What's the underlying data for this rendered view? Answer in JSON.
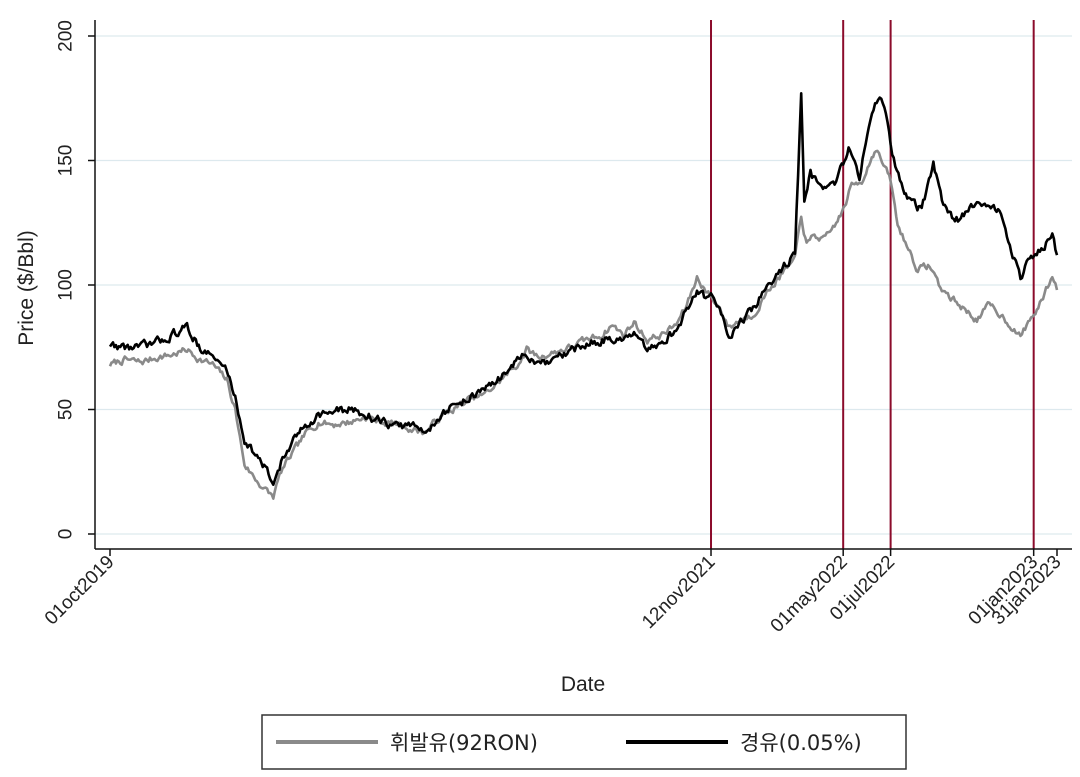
{
  "chart_data": {
    "type": "line",
    "xlabel": "Date",
    "ylabel": "Price ($/Bbl)",
    "ylim": [
      0,
      200
    ],
    "yticks": [
      0,
      50,
      100,
      150,
      200
    ],
    "xlim": [
      "2019-10-01",
      "2023-01-31"
    ],
    "grid": "horizontal",
    "legend_position": "bottom",
    "colors": {
      "gasoline": "#8a8a8a",
      "diesel": "#000000",
      "vline": "#8b0b2b",
      "grid": "#dde9ee"
    },
    "vertical_lines": [
      "2021-11-12",
      "2022-05-01",
      "2022-07-01",
      "2023-01-01"
    ],
    "x_ticks": [
      {
        "date": "2019-10-01",
        "label": "01oct2019"
      },
      {
        "date": "2021-11-12",
        "label": "12nov2021"
      },
      {
        "date": "2022-05-01",
        "label": "01may2022"
      },
      {
        "date": "2022-07-01",
        "label": "01jul2022"
      },
      {
        "date": "2023-01-01",
        "label": "01jan2023"
      },
      {
        "date": "2023-01-31",
        "label": "31jan2023"
      }
    ],
    "series": [
      {
        "name": "휘발유(92RON)",
        "key": "gasoline",
        "points": [
          [
            "2019-10-01",
            68
          ],
          [
            "2019-10-20",
            70
          ],
          [
            "2019-11-10",
            69
          ],
          [
            "2019-12-01",
            71
          ],
          [
            "2019-12-20",
            72
          ],
          [
            "2020-01-08",
            74
          ],
          [
            "2020-01-25",
            70
          ],
          [
            "2020-02-10",
            68
          ],
          [
            "2020-02-28",
            62
          ],
          [
            "2020-03-10",
            50
          ],
          [
            "2020-03-22",
            28
          ],
          [
            "2020-04-05",
            22
          ],
          [
            "2020-04-20",
            17
          ],
          [
            "2020-04-28",
            15
          ],
          [
            "2020-05-08",
            25
          ],
          [
            "2020-05-22",
            32
          ],
          [
            "2020-06-08",
            40
          ],
          [
            "2020-06-25",
            45
          ],
          [
            "2020-07-15",
            44
          ],
          [
            "2020-08-05",
            45
          ],
          [
            "2020-08-25",
            47
          ],
          [
            "2020-09-15",
            45
          ],
          [
            "2020-10-05",
            44
          ],
          [
            "2020-10-25",
            42
          ],
          [
            "2020-11-10",
            41
          ],
          [
            "2020-11-25",
            46
          ],
          [
            "2020-12-15",
            50
          ],
          [
            "2021-01-05",
            54
          ],
          [
            "2021-01-25",
            56
          ],
          [
            "2021-02-15",
            62
          ],
          [
            "2021-03-08",
            68
          ],
          [
            "2021-03-20",
            74
          ],
          [
            "2021-04-05",
            71
          ],
          [
            "2021-04-25",
            73
          ],
          [
            "2021-05-15",
            75
          ],
          [
            "2021-06-05",
            78
          ],
          [
            "2021-06-25",
            80
          ],
          [
            "2021-07-08",
            84
          ],
          [
            "2021-07-22",
            80
          ],
          [
            "2021-08-05",
            85
          ],
          [
            "2021-08-22",
            78
          ],
          [
            "2021-09-10",
            80
          ],
          [
            "2021-09-28",
            84
          ],
          [
            "2021-10-12",
            92
          ],
          [
            "2021-10-25",
            103
          ],
          [
            "2021-11-05",
            98
          ],
          [
            "2021-11-12",
            95
          ],
          [
            "2021-11-25",
            90
          ],
          [
            "2021-12-05",
            83
          ],
          [
            "2021-12-20",
            86
          ],
          [
            "2022-01-05",
            88
          ],
          [
            "2022-01-25",
            98
          ],
          [
            "2022-02-10",
            104
          ],
          [
            "2022-02-28",
            110
          ],
          [
            "2022-03-08",
            128
          ],
          [
            "2022-03-15",
            116
          ],
          [
            "2022-03-25",
            120
          ],
          [
            "2022-04-08",
            118
          ],
          [
            "2022-04-22",
            125
          ],
          [
            "2022-05-01",
            130
          ],
          [
            "2022-05-12",
            140
          ],
          [
            "2022-05-25",
            142
          ],
          [
            "2022-06-05",
            150
          ],
          [
            "2022-06-12",
            155
          ],
          [
            "2022-06-22",
            148
          ],
          [
            "2022-07-01",
            142
          ],
          [
            "2022-07-10",
            124
          ],
          [
            "2022-07-22",
            116
          ],
          [
            "2022-08-05",
            106
          ],
          [
            "2022-08-20",
            108
          ],
          [
            "2022-09-05",
            98
          ],
          [
            "2022-09-20",
            94
          ],
          [
            "2022-10-05",
            90
          ],
          [
            "2022-10-20",
            86
          ],
          [
            "2022-11-05",
            92
          ],
          [
            "2022-11-20",
            88
          ],
          [
            "2022-12-05",
            83
          ],
          [
            "2022-12-15",
            79
          ],
          [
            "2022-12-25",
            85
          ],
          [
            "2023-01-05",
            90
          ],
          [
            "2023-01-15",
            96
          ],
          [
            "2023-01-25",
            104
          ],
          [
            "2023-01-31",
            98
          ]
        ]
      },
      {
        "name": "경유(0.05%)",
        "key": "diesel",
        "points": [
          [
            "2019-10-01",
            76
          ],
          [
            "2019-10-20",
            75
          ],
          [
            "2019-11-10",
            75
          ],
          [
            "2019-12-01",
            77
          ],
          [
            "2019-12-20",
            80
          ],
          [
            "2020-01-08",
            83
          ],
          [
            "2020-01-25",
            75
          ],
          [
            "2020-02-10",
            71
          ],
          [
            "2020-02-28",
            66
          ],
          [
            "2020-03-10",
            55
          ],
          [
            "2020-03-22",
            38
          ],
          [
            "2020-04-05",
            32
          ],
          [
            "2020-04-20",
            25
          ],
          [
            "2020-04-28",
            20
          ],
          [
            "2020-05-08",
            29
          ],
          [
            "2020-05-22",
            36
          ],
          [
            "2020-06-08",
            44
          ],
          [
            "2020-06-25",
            48
          ],
          [
            "2020-07-15",
            49
          ],
          [
            "2020-08-05",
            50
          ],
          [
            "2020-08-25",
            48
          ],
          [
            "2020-09-15",
            45
          ],
          [
            "2020-10-05",
            43
          ],
          [
            "2020-10-25",
            44
          ],
          [
            "2020-11-10",
            40
          ],
          [
            "2020-11-25",
            47
          ],
          [
            "2020-12-15",
            51
          ],
          [
            "2021-01-05",
            55
          ],
          [
            "2021-01-25",
            58
          ],
          [
            "2021-02-15",
            63
          ],
          [
            "2021-03-08",
            70
          ],
          [
            "2021-03-20",
            72
          ],
          [
            "2021-04-05",
            67
          ],
          [
            "2021-04-25",
            70
          ],
          [
            "2021-05-15",
            73
          ],
          [
            "2021-06-05",
            76
          ],
          [
            "2021-06-25",
            78
          ],
          [
            "2021-07-08",
            79
          ],
          [
            "2021-07-22",
            77
          ],
          [
            "2021-08-05",
            80
          ],
          [
            "2021-08-22",
            73
          ],
          [
            "2021-09-10",
            77
          ],
          [
            "2021-09-28",
            82
          ],
          [
            "2021-10-12",
            90
          ],
          [
            "2021-10-25",
            98
          ],
          [
            "2021-11-05",
            95
          ],
          [
            "2021-11-12",
            96
          ],
          [
            "2021-11-25",
            88
          ],
          [
            "2021-12-05",
            80
          ],
          [
            "2021-12-20",
            85
          ],
          [
            "2022-01-05",
            90
          ],
          [
            "2022-01-25",
            100
          ],
          [
            "2022-02-10",
            106
          ],
          [
            "2022-02-28",
            113
          ],
          [
            "2022-03-08",
            176
          ],
          [
            "2022-03-12",
            132
          ],
          [
            "2022-03-20",
            145
          ],
          [
            "2022-04-05",
            136
          ],
          [
            "2022-04-20",
            140
          ],
          [
            "2022-05-01",
            148
          ],
          [
            "2022-05-08",
            155
          ],
          [
            "2022-05-22",
            144
          ],
          [
            "2022-06-05",
            165
          ],
          [
            "2022-06-15",
            176
          ],
          [
            "2022-06-25",
            170
          ],
          [
            "2022-07-01",
            155
          ],
          [
            "2022-07-15",
            140
          ],
          [
            "2022-07-28",
            133
          ],
          [
            "2022-08-10",
            130
          ],
          [
            "2022-08-25",
            148
          ],
          [
            "2022-09-05",
            135
          ],
          [
            "2022-09-20",
            125
          ],
          [
            "2022-10-05",
            128
          ],
          [
            "2022-10-20",
            134
          ],
          [
            "2022-11-05",
            133
          ],
          [
            "2022-11-20",
            128
          ],
          [
            "2022-12-05",
            112
          ],
          [
            "2022-12-15",
            103
          ],
          [
            "2022-12-25",
            110
          ],
          [
            "2023-01-05",
            111
          ],
          [
            "2023-01-15",
            116
          ],
          [
            "2023-01-25",
            122
          ],
          [
            "2023-01-31",
            112
          ]
        ]
      }
    ]
  }
}
